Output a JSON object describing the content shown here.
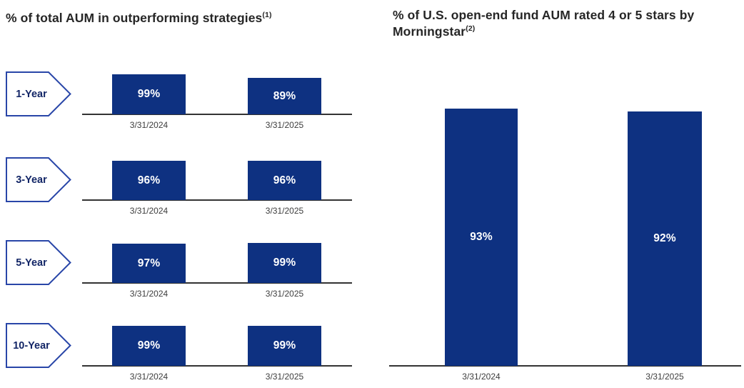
{
  "colors": {
    "bar_fill": "#0E3181",
    "arrow_border": "#2946A8",
    "arrow_text": "#122566",
    "axis_line": "#333333",
    "date_text": "#3d3d3d",
    "title_text": "#262626",
    "bar_label": "#ffffff"
  },
  "chart_data": [
    {
      "type": "bar",
      "title": "% of total AUM in outperforming strategies",
      "footnote": "(1)",
      "categories": [
        "3/31/2024",
        "3/31/2025"
      ],
      "unit": "%",
      "ylim": [
        0,
        100
      ],
      "grid": false,
      "legend": "none",
      "groups": [
        {
          "label": "1-Year",
          "values": [
            99,
            89
          ],
          "display": [
            "99%",
            "89%"
          ]
        },
        {
          "label": "3-Year",
          "values": [
            96,
            96
          ],
          "display": [
            "96%",
            "96%"
          ]
        },
        {
          "label": "5-Year",
          "values": [
            97,
            99
          ],
          "display": [
            "97%",
            "99%"
          ]
        },
        {
          "label": "10-Year",
          "values": [
            99,
            99
          ],
          "display": [
            "99%",
            "99%"
          ]
        }
      ]
    },
    {
      "type": "bar",
      "title": "% of U.S. open-end fund AUM rated 4 or 5 stars by Morningstar",
      "footnote": "(2)",
      "categories": [
        "3/31/2024",
        "3/31/2025"
      ],
      "unit": "%",
      "ylim": [
        0,
        100
      ],
      "grid": false,
      "legend": "none",
      "values": [
        93,
        92
      ],
      "display": [
        "93%",
        "92%"
      ]
    }
  ]
}
